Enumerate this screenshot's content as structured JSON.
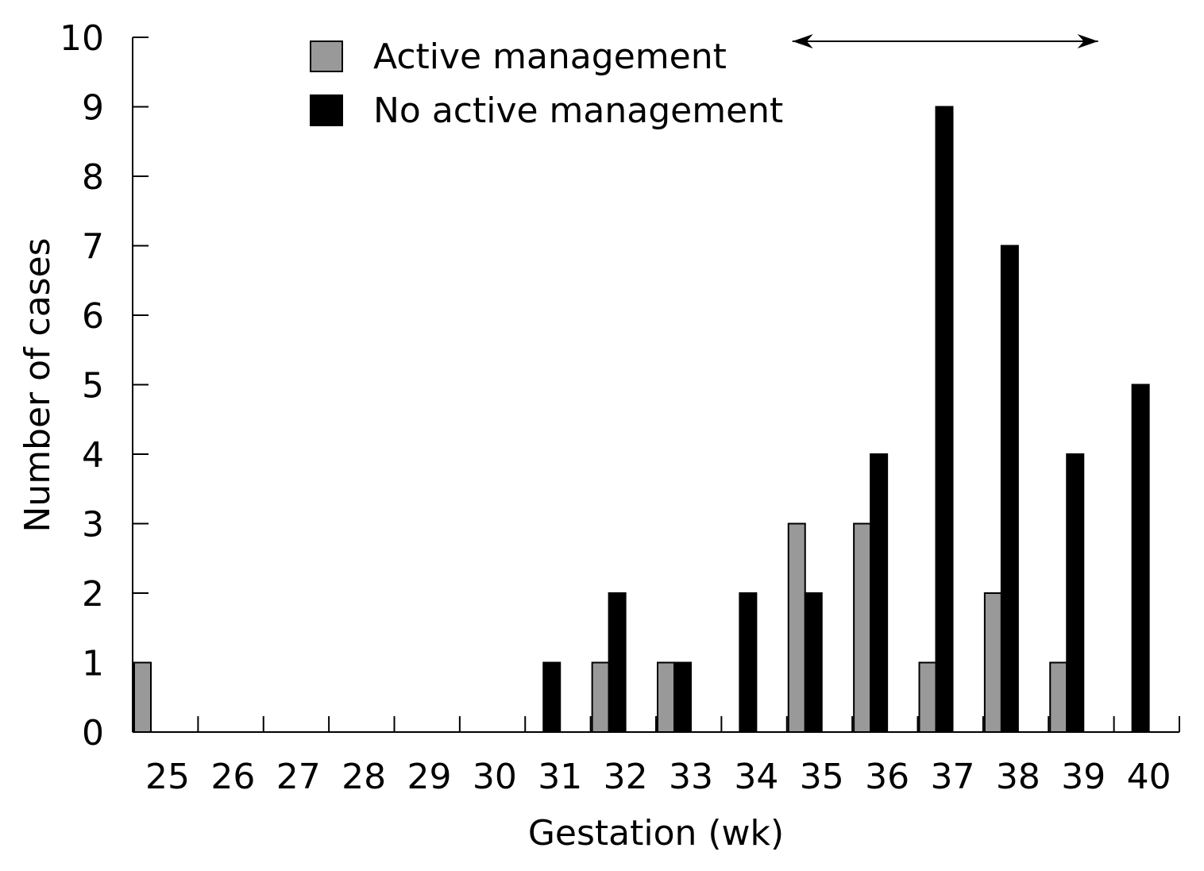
{
  "chart_data": {
    "type": "bar",
    "title": "",
    "xlabel": "Gestation (wk)",
    "ylabel": "Number of cases",
    "ylim": [
      0,
      10
    ],
    "yticks": [
      "0",
      "1",
      "2",
      "3",
      "4",
      "5",
      "6",
      "7",
      "8",
      "9",
      "10"
    ],
    "categories": [
      "25",
      "26",
      "27",
      "28",
      "29",
      "30",
      "31",
      "32",
      "33",
      "34",
      "35",
      "36",
      "37",
      "38",
      "39",
      "40"
    ],
    "series": [
      {
        "name": "Active management",
        "color": "#999999",
        "values": [
          1,
          0,
          0,
          0,
          0,
          0,
          0,
          1,
          1,
          0,
          3,
          3,
          1,
          2,
          1,
          0
        ]
      },
      {
        "name": "No active management",
        "color": "#000000",
        "values": [
          0,
          0,
          0,
          0,
          0,
          0,
          1,
          2,
          1,
          2,
          2,
          4,
          9,
          7,
          4,
          5
        ]
      }
    ],
    "grid": false,
    "legend_position": "top-left",
    "annotations": [
      {
        "type": "double-arrow",
        "x_from": "35",
        "x_to": "39"
      }
    ]
  }
}
